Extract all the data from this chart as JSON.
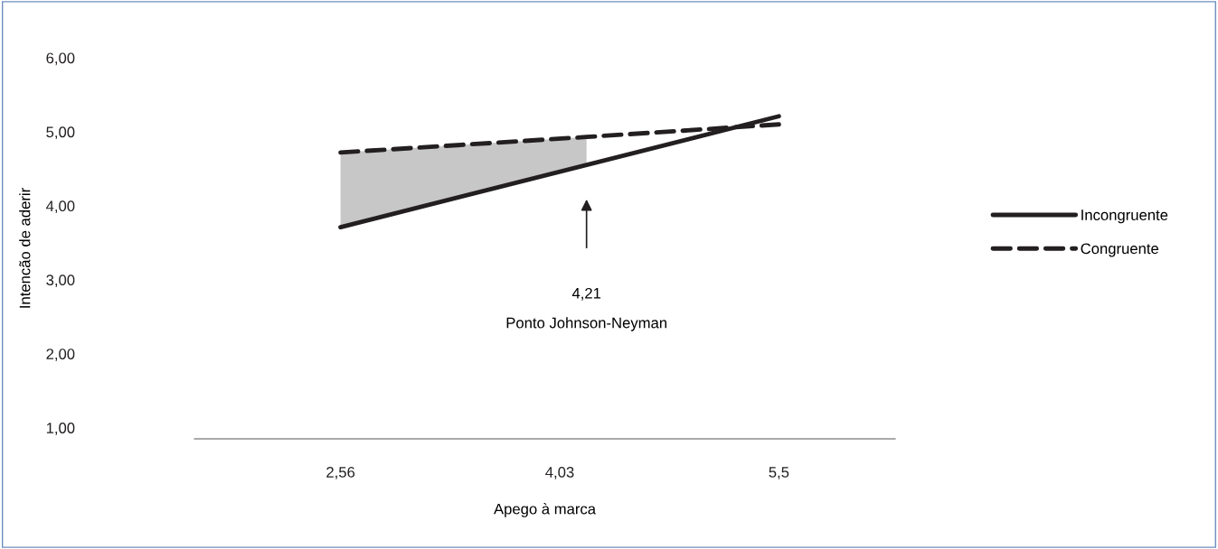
{
  "chart_data": {
    "type": "line",
    "xlabel": "Apego à marca",
    "ylabel": "Intencão de aderir",
    "x": [
      2.56,
      5.5
    ],
    "series": [
      {
        "name": "Incongruente",
        "color": "#231f20",
        "values": [
          3.71,
          5.21
        ],
        "line_style": "solid"
      },
      {
        "name": "Congruente",
        "color": "#231f20",
        "x": [
          2.56,
          4.21,
          5.5
        ],
        "values": [
          4.72,
          4.93,
          5.1
        ],
        "line_style": "dashed",
        "lower": [
          3.71,
          4.55,
          null
        ],
        "upper": [
          4.72,
          4.93,
          null
        ]
      }
    ],
    "xlim": [
      1.58,
      6.28
    ],
    "xticks": [
      {
        "value": 2.56,
        "label": "2,56"
      },
      {
        "value": 4.03,
        "label": "4,03"
      },
      {
        "value": 5.5,
        "label": "5,5"
      }
    ],
    "ylim": [
      0.85,
      6
    ],
    "yticks": [
      {
        "value": 1,
        "label": "1,00"
      },
      {
        "value": 2,
        "label": "2,00"
      },
      {
        "value": 3,
        "label": "3,00"
      },
      {
        "value": 4,
        "label": "4,00"
      },
      {
        "value": 5,
        "label": "5,00"
      },
      {
        "value": 6,
        "label": "6,00"
      }
    ],
    "annotations": [
      "4,21",
      "Ponto Johnson-Neyman"
    ],
    "legend": "right",
    "grid": false,
    "marker": "none"
  }
}
